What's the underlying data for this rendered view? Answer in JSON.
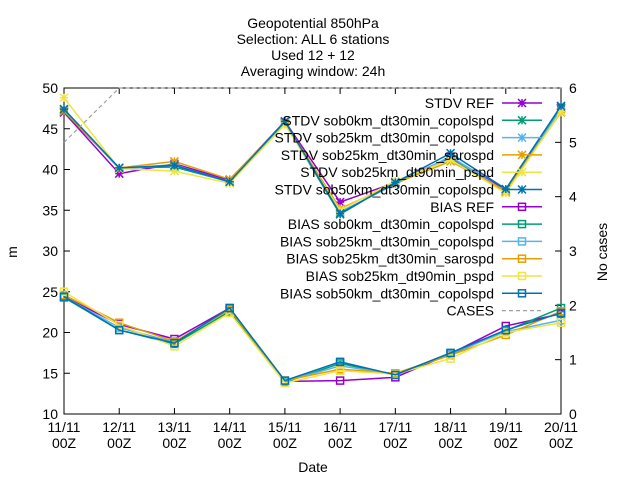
{
  "chart_data": {
    "type": "line",
    "title_lines": [
      "Geopotential 850hPa",
      "Selection: ALL      6 stations",
      "Used 12 + 12",
      "Averaging window: 24h"
    ],
    "xlabel": "Date",
    "ylabel": "m",
    "y2label": "No cases",
    "categories": [
      "11/11 00Z",
      "12/11 00Z",
      "13/11 00Z",
      "14/11 00Z",
      "15/11 00Z",
      "16/11 00Z",
      "17/11 00Z",
      "18/11 00Z",
      "19/11 00Z",
      "20/11 00Z"
    ],
    "ylim": [
      10,
      50
    ],
    "yticks": [
      10,
      15,
      20,
      25,
      30,
      35,
      40,
      45,
      50
    ],
    "y2lim": [
      0,
      6
    ],
    "y2ticks": [
      0,
      1,
      2,
      3,
      4,
      5,
      6
    ],
    "grid": false,
    "legend_position": "top-right",
    "series": [
      {
        "name": "STDV REF",
        "axis": "y1",
        "marker": "star",
        "color": "#9400d3",
        "values": [
          47.0,
          39.5,
          40.7,
          38.7,
          45.9,
          36.0,
          38.4,
          41.5,
          37.5,
          47.6
        ]
      },
      {
        "name": "STDV sob0km_dt30min_copolspd",
        "axis": "y1",
        "marker": "star",
        "color": "#009e73",
        "values": [
          47.1,
          40.2,
          40.3,
          38.5,
          45.7,
          34.5,
          38.5,
          41.3,
          37.2,
          47.5
        ]
      },
      {
        "name": "STDV sob25km_dt30min_copolspd",
        "axis": "y1",
        "marker": "star",
        "color": "#56b4e9",
        "values": [
          47.3,
          40.1,
          40.6,
          38.4,
          45.6,
          34.8,
          38.2,
          41.6,
          37.3,
          47.4
        ]
      },
      {
        "name": "STDV sob25km_dt30min_sarospd",
        "axis": "y1",
        "marker": "star",
        "color": "#e69f00",
        "values": [
          47.2,
          40.2,
          41.0,
          38.8,
          45.8,
          35.2,
          38.3,
          41.0,
          37.4,
          47.0
        ]
      },
      {
        "name": "STDV sob25km_dt90min_pspd",
        "axis": "y1",
        "marker": "star",
        "color": "#f0e442",
        "values": [
          48.8,
          40.1,
          39.8,
          38.3,
          45.5,
          35.0,
          38.6,
          41.2,
          37.1,
          47.1
        ]
      },
      {
        "name": "STDV sob50km_dt30min_copolspd",
        "axis": "y1",
        "marker": "star",
        "color": "#0072b2",
        "values": [
          47.4,
          40.2,
          40.5,
          38.5,
          45.9,
          34.6,
          38.4,
          42.0,
          37.6,
          47.8
        ]
      },
      {
        "name": "BIAS REF",
        "axis": "y1",
        "marker": "square",
        "color": "#9400d3",
        "values": [
          24.4,
          21.0,
          19.2,
          23.0,
          14.0,
          14.1,
          14.5,
          17.4,
          20.8,
          22.3
        ]
      },
      {
        "name": "BIAS sob0km_dt30min_copolspd",
        "axis": "y1",
        "marker": "square",
        "color": "#009e73",
        "values": [
          24.3,
          20.3,
          18.6,
          22.6,
          13.9,
          16.2,
          14.8,
          17.3,
          20.2,
          23.0
        ]
      },
      {
        "name": "BIAS sob25km_dt30min_copolspd",
        "axis": "y1",
        "marker": "square",
        "color": "#56b4e9",
        "values": [
          24.4,
          20.6,
          18.8,
          22.9,
          14.0,
          15.9,
          14.9,
          17.4,
          20.1,
          21.5
        ]
      },
      {
        "name": "BIAS sob25km_dt30min_sarospd",
        "axis": "y1",
        "marker": "square",
        "color": "#e69f00",
        "values": [
          24.6,
          21.2,
          18.9,
          22.8,
          14.1,
          15.5,
          15.0,
          17.2,
          19.7,
          22.6
        ]
      },
      {
        "name": "BIAS sob25km_dt90min_pspd",
        "axis": "y1",
        "marker": "square",
        "color": "#f0e442",
        "values": [
          25.0,
          20.9,
          18.3,
          22.4,
          13.8,
          15.3,
          14.9,
          16.8,
          20.0,
          21.2
        ]
      },
      {
        "name": "BIAS sob50km_dt30min_copolspd",
        "axis": "y1",
        "marker": "square",
        "color": "#0072b2",
        "values": [
          24.4,
          20.3,
          18.7,
          23.0,
          14.1,
          16.4,
          14.8,
          17.5,
          20.3,
          22.4
        ]
      },
      {
        "name": "CASES",
        "axis": "y2",
        "marker": "none",
        "dashed": true,
        "color": "#a0a0a0",
        "values": [
          5.0,
          6.0,
          6.0,
          6.0,
          6.0,
          6.0,
          6.0,
          6.0,
          6.0,
          6.0
        ]
      }
    ]
  }
}
